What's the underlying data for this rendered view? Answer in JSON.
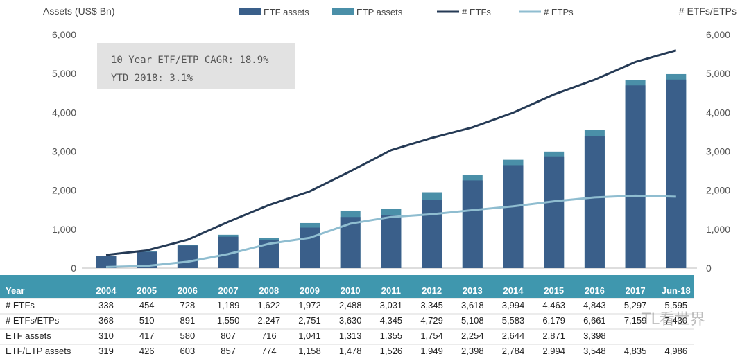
{
  "chart_data": {
    "type": "bar",
    "y_left_label": "Assets (US$ Bn)",
    "y_right_label": "# ETFs/ETPs",
    "ylim": [
      0,
      6000
    ],
    "y_ticks": [
      "0",
      "1,000",
      "2,000",
      "3,000",
      "4,000",
      "5,000",
      "6,000"
    ],
    "y_tick_values": [
      0,
      1000,
      2000,
      3000,
      4000,
      5000,
      6000
    ],
    "categories": [
      "2004",
      "2005",
      "2006",
      "2007",
      "2008",
      "2009",
      "2010",
      "2011",
      "2012",
      "2013",
      "2014",
      "2015",
      "2016",
      "2017",
      "Jun-18"
    ],
    "legend": [
      {
        "name": "ETF assets",
        "kind": "bar",
        "color": "#3a5f8a"
      },
      {
        "name": "ETP assets",
        "kind": "bar",
        "color": "#4a8fa8"
      },
      {
        "name": "# ETFs",
        "kind": "line",
        "color": "#253a55"
      },
      {
        "name": "# ETPs",
        "kind": "line",
        "color": "#8fbdd0"
      }
    ],
    "series": [
      {
        "name": "ETF assets",
        "values": [
          310,
          417,
          580,
          807,
          716,
          1041,
          1313,
          1355,
          1754,
          2254,
          2644,
          2871,
          3398,
          4835,
          4986
        ]
      },
      {
        "name": "ETF/ETP assets",
        "values": [
          319,
          426,
          603,
          857,
          774,
          1158,
          1478,
          1526,
          1949,
          2398,
          2784,
          2994,
          3548,
          4835,
          4986
        ]
      },
      {
        "name": "# ETFs",
        "values": [
          338,
          454,
          728,
          1189,
          1622,
          1972,
          2488,
          3031,
          3345,
          3618,
          3994,
          4463,
          4843,
          5297,
          5595
        ]
      },
      {
        "name": "# ETPs",
        "values": [
          30,
          56,
          163,
          361,
          625,
          779,
          1142,
          1314,
          1384,
          1490,
          1589,
          1716,
          1818,
          1862,
          1835
        ]
      }
    ],
    "annotation": [
      "10 Year ETF/ETP CAGR: 18.9%",
      "YTD 2018: 3.1%"
    ],
    "table": {
      "header": "Year",
      "rows": [
        {
          "label": "# ETFs",
          "values": [
            "338",
            "454",
            "728",
            "1,189",
            "1,622",
            "1,972",
            "2,488",
            "3,031",
            "3,345",
            "3,618",
            "3,994",
            "4,463",
            "4,843",
            "5,297",
            "5,595"
          ]
        },
        {
          "label": "# ETFs/ETPs",
          "values": [
            "368",
            "510",
            "891",
            "1,550",
            "2,247",
            "2,751",
            "3,630",
            "4,345",
            "4,729",
            "5,108",
            "5,583",
            "6,179",
            "6,661",
            "7,159",
            "7,430"
          ]
        },
        {
          "label": "ETF assets",
          "values": [
            "310",
            "417",
            "580",
            "807",
            "716",
            "1,041",
            "1,313",
            "1,355",
            "1,754",
            "2,254",
            "2,644",
            "2,871",
            "3,398",
            "",
            ""
          ]
        },
        {
          "label": "ETF/ETP assets",
          "values": [
            "319",
            "426",
            "603",
            "857",
            "774",
            "1,158",
            "1,478",
            "1,526",
            "1,949",
            "2,398",
            "2,784",
            "2,994",
            "3,548",
            "4,835",
            "4,986"
          ]
        }
      ]
    }
  },
  "colors": {
    "etf_bar": "#3a5f8a",
    "etp_bar": "#4a8fa8",
    "etfs_line": "#253a55",
    "etps_line": "#8fbdd0",
    "table_header": "#3f97ae",
    "annot_bg": "#e2e2e2"
  },
  "watermark": "TL看世界"
}
